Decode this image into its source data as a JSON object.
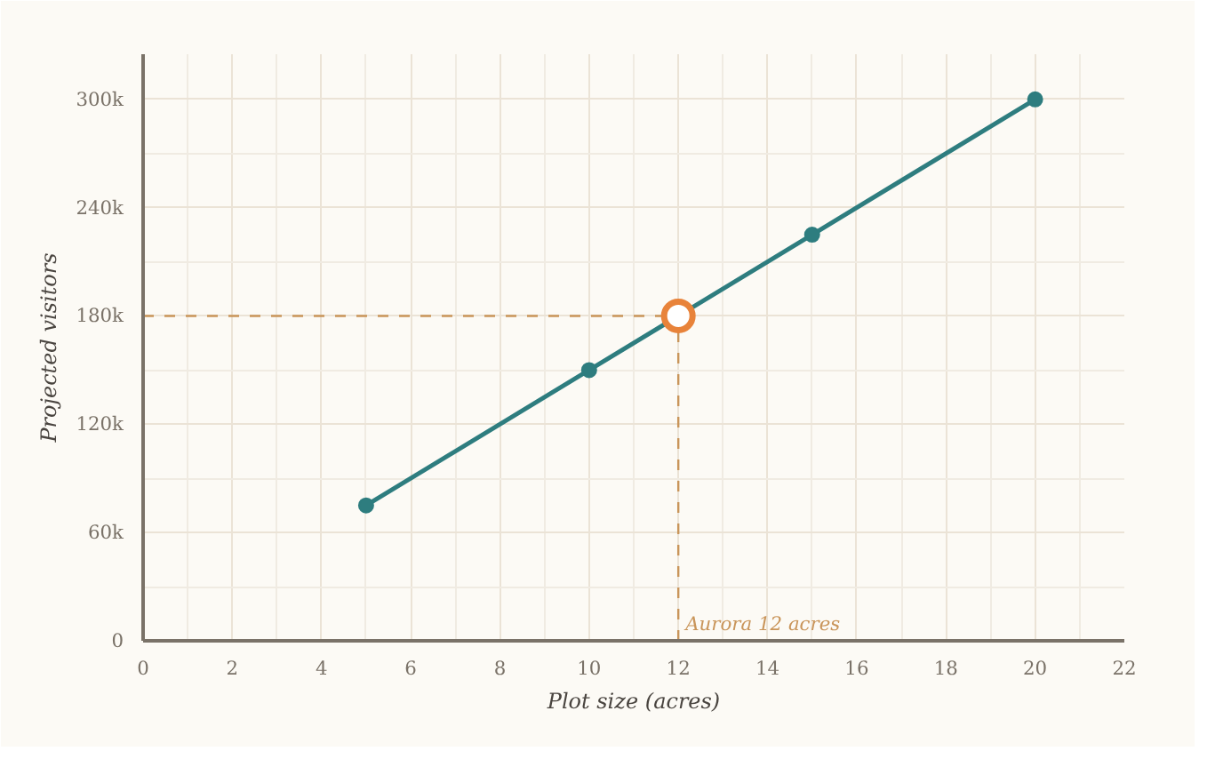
{
  "chart_data": {
    "type": "line",
    "xlabel": "Plot size (acres)",
    "ylabel": "Projected visitors",
    "x": [
      5,
      10,
      15,
      20
    ],
    "series": [
      {
        "color": "#2e7d7f",
        "values": [
          75000,
          150000,
          225000,
          300000
        ]
      },
      {
        "type": "scatter",
        "color": "#e8833a",
        "x": [
          12
        ],
        "values": [
          180000
        ]
      }
    ],
    "xlim": [
      0,
      22
    ],
    "xticks": [
      0,
      2,
      4,
      6,
      8,
      10,
      12,
      14,
      16,
      18,
      20,
      22
    ],
    "ylim": [
      0,
      325000
    ],
    "yticks": [
      0,
      {
        "value": 60000,
        "label": "60k"
      },
      {
        "value": 120000,
        "label": "120k"
      },
      {
        "value": 180000,
        "label": "180k"
      },
      {
        "value": 240000,
        "label": "240k"
      },
      {
        "value": 300000,
        "label": "300k"
      }
    ],
    "ref_lines": [
      {
        "axis": "x",
        "value": 12,
        "color": "#c9955a",
        "line_style": "dashed"
      },
      {
        "axis": "y",
        "value": 180000,
        "color": "#c9955a",
        "line_style": "dashed"
      }
    ],
    "annotations": [
      "Aurora 12 acres"
    ],
    "grid": true,
    "marker": "circle",
    "line_style": "solid"
  }
}
